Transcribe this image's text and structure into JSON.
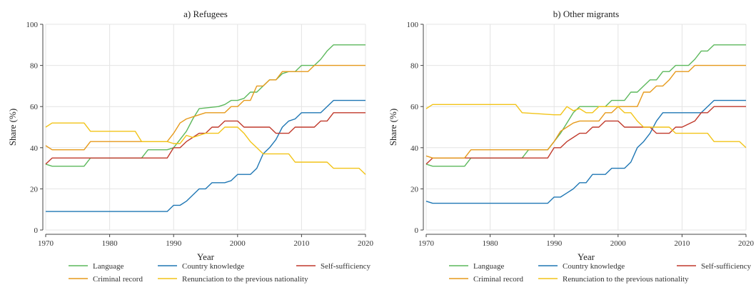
{
  "chart_data": [
    {
      "type": "line",
      "title": "a) Refugees",
      "xlabel": "Year",
      "ylabel": "Share (%)",
      "xlim": [
        1970,
        2020
      ],
      "ylim": [
        0,
        100
      ],
      "xticks": [
        1970,
        1980,
        1990,
        2000,
        2010,
        2020
      ],
      "yticks": [
        0,
        20,
        40,
        60,
        80,
        100
      ],
      "grid": true,
      "legend": "bottom",
      "series": [
        {
          "name": "Language",
          "color": "#5cb85c",
          "x": [
            1970,
            1971,
            1976,
            1977,
            1985,
            1986,
            1989,
            1990,
            1991,
            1992,
            1993,
            1994,
            1997,
            1998,
            1999,
            2000,
            2001,
            2002,
            2003,
            2004,
            2005,
            2006,
            2007,
            2008,
            2009,
            2010,
            2011,
            2012,
            2013,
            2014,
            2015,
            2020
          ],
          "y": [
            32,
            31,
            31,
            35,
            35,
            39,
            39,
            40,
            44,
            48,
            54,
            59,
            60,
            61,
            63,
            63,
            64,
            67,
            67,
            70,
            73,
            73,
            76,
            77,
            77,
            80,
            80,
            80,
            83,
            87,
            90,
            90
          ]
        },
        {
          "name": "Country knowledge",
          "color": "#1f77b4",
          "x": [
            1970,
            1971,
            1989,
            1990,
            1991,
            1992,
            1993,
            1994,
            1995,
            1996,
            1997,
            1998,
            1999,
            2000,
            2001,
            2002,
            2003,
            2004,
            2005,
            2006,
            2007,
            2008,
            2009,
            2010,
            2013,
            2014,
            2015,
            2020
          ],
          "y": [
            9,
            9,
            9,
            12,
            12,
            14,
            17,
            20,
            20,
            23,
            23,
            23,
            24,
            27,
            27,
            27,
            30,
            37,
            40,
            44,
            50,
            53,
            54,
            57,
            57,
            60,
            63,
            63
          ]
        },
        {
          "name": "Self-sufficiency",
          "color": "#c0392b",
          "x": [
            1970,
            1971,
            1989,
            1990,
            1991,
            1992,
            1993,
            1994,
            1995,
            1996,
            1997,
            1998,
            1999,
            2000,
            2001,
            2005,
            2006,
            2007,
            2008,
            2009,
            2010,
            2012,
            2013,
            2014,
            2015,
            2020
          ],
          "y": [
            32,
            35,
            35,
            40,
            40,
            43,
            45,
            47,
            47,
            50,
            50,
            53,
            53,
            53,
            50,
            50,
            47,
            47,
            47,
            50,
            50,
            50,
            53,
            53,
            57,
            57
          ]
        },
        {
          "name": "Criminal record",
          "color": "#e69a1b",
          "x": [
            1970,
            1971,
            1976,
            1977,
            1988,
            1989,
            1990,
            1991,
            1992,
            1993,
            1994,
            1995,
            1996,
            1997,
            1998,
            1999,
            2000,
            2001,
            2002,
            2003,
            2004,
            2005,
            2006,
            2007,
            2008,
            2009,
            2010,
            2011,
            2012,
            2020
          ],
          "y": [
            41,
            39,
            39,
            43,
            43,
            43,
            47,
            52,
            54,
            55,
            56,
            57,
            57,
            57,
            57,
            60,
            60,
            63,
            63,
            70,
            70,
            73,
            73,
            77,
            77,
            77,
            77,
            77,
            80,
            80
          ]
        },
        {
          "name": "Renunciation to the previous nationality",
          "color": "#f2c418",
          "x": [
            1970,
            1971,
            1976,
            1977,
            1984,
            1985,
            1989,
            1990,
            1991,
            1992,
            1993,
            1994,
            1995,
            1996,
            1997,
            1998,
            1999,
            2000,
            2001,
            2002,
            2003,
            2004,
            2005,
            2006,
            2007,
            2008,
            2009,
            2010,
            2011,
            2014,
            2015,
            2019,
            2020
          ],
          "y": [
            50,
            52,
            52,
            48,
            48,
            43,
            43,
            42,
            42,
            46,
            45,
            46,
            47,
            47,
            47,
            50,
            50,
            50,
            47,
            43,
            40,
            37,
            37,
            37,
            37,
            37,
            33,
            33,
            33,
            33,
            30,
            30,
            27
          ]
        }
      ]
    },
    {
      "type": "line",
      "title": "b) Other migrants",
      "xlabel": "Year",
      "ylabel": "Share (%)",
      "xlim": [
        1970,
        2020
      ],
      "ylim": [
        0,
        100
      ],
      "xticks": [
        1970,
        1980,
        1990,
        2000,
        2010,
        2020
      ],
      "yticks": [
        0,
        20,
        40,
        60,
        80,
        100
      ],
      "grid": true,
      "legend": "bottom",
      "series": [
        {
          "name": "Language",
          "color": "#5cb85c",
          "x": [
            1970,
            1971,
            1976,
            1977,
            1985,
            1986,
            1989,
            1990,
            1991,
            1992,
            1993,
            1994,
            1997,
            1998,
            1999,
            2000,
            2001,
            2002,
            2003,
            2004,
            2005,
            2006,
            2007,
            2008,
            2009,
            2010,
            2011,
            2012,
            2013,
            2014,
            2015,
            2020
          ],
          "y": [
            32,
            31,
            31,
            35,
            35,
            39,
            39,
            43,
            47,
            52,
            57,
            60,
            60,
            60,
            63,
            63,
            63,
            67,
            67,
            70,
            73,
            73,
            77,
            77,
            80,
            80,
            80,
            83,
            87,
            87,
            90,
            90
          ]
        },
        {
          "name": "Country knowledge",
          "color": "#1f77b4",
          "x": [
            1970,
            1971,
            1989,
            1990,
            1991,
            1992,
            1993,
            1994,
            1995,
            1996,
            1997,
            1998,
            1999,
            2000,
            2001,
            2002,
            2003,
            2004,
            2005,
            2006,
            2007,
            2008,
            2009,
            2010,
            2011,
            2012,
            2013,
            2014,
            2015,
            2020
          ],
          "y": [
            14,
            13,
            13,
            16,
            16,
            18,
            20,
            23,
            23,
            27,
            27,
            27,
            30,
            30,
            30,
            33,
            40,
            43,
            47,
            53,
            57,
            57,
            57,
            57,
            57,
            57,
            57,
            60,
            63,
            63
          ]
        },
        {
          "name": "Self-sufficiency",
          "color": "#c0392b",
          "x": [
            1970,
            1971,
            1989,
            1990,
            1991,
            1992,
            1993,
            1994,
            1995,
            1996,
            1997,
            1998,
            1999,
            2000,
            2001,
            2005,
            2006,
            2007,
            2008,
            2009,
            2010,
            2012,
            2013,
            2014,
            2015,
            2020
          ],
          "y": [
            32,
            35,
            35,
            40,
            40,
            43,
            45,
            47,
            47,
            50,
            50,
            53,
            53,
            53,
            50,
            50,
            47,
            47,
            47,
            50,
            50,
            53,
            57,
            57,
            60,
            60
          ]
        },
        {
          "name": "Criminal record",
          "color": "#e69a1b",
          "x": [
            1970,
            1971,
            1976,
            1977,
            1988,
            1989,
            1990,
            1991,
            1992,
            1993,
            1994,
            1995,
            1996,
            1997,
            1998,
            1999,
            2000,
            2001,
            2002,
            2003,
            2004,
            2005,
            2006,
            2007,
            2008,
            2009,
            2010,
            2011,
            2012,
            2020
          ],
          "y": [
            36,
            35,
            35,
            39,
            39,
            39,
            43,
            48,
            50,
            52,
            53,
            53,
            53,
            53,
            57,
            57,
            60,
            60,
            60,
            60,
            67,
            67,
            70,
            70,
            73,
            77,
            77,
            77,
            80,
            80
          ]
        },
        {
          "name": "Renunciation to the previous nationality",
          "color": "#f2c418",
          "x": [
            1970,
            1971,
            1984,
            1985,
            1990,
            1991,
            1992,
            1993,
            1994,
            1995,
            1996,
            1997,
            1998,
            1999,
            2000,
            2001,
            2002,
            2003,
            2004,
            2005,
            2006,
            2007,
            2008,
            2009,
            2010,
            2014,
            2015,
            2019,
            2020
          ],
          "y": [
            59,
            61,
            61,
            57,
            56,
            56,
            60,
            58,
            59,
            57,
            57,
            60,
            60,
            60,
            60,
            57,
            57,
            53,
            50,
            50,
            50,
            50,
            50,
            47,
            47,
            47,
            43,
            43,
            40
          ]
        }
      ]
    }
  ]
}
